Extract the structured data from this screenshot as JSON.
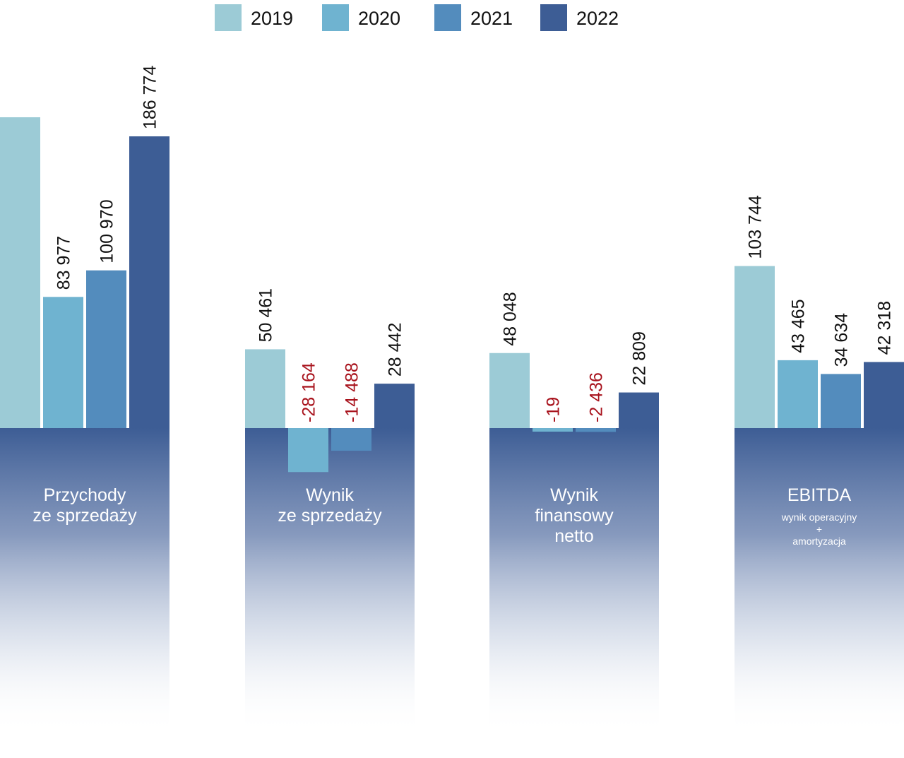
{
  "chart_data": {
    "type": "bar",
    "title": "",
    "xlabel": "",
    "ylabel": "",
    "legend_position": "top-center",
    "grid": false,
    "ylim": [
      -30000,
      215000
    ],
    "categories": [
      {
        "label_lines": [
          "Przychody",
          "ze sprzedaży"
        ],
        "sublabel_lines": []
      },
      {
        "label_lines": [
          "Wynik",
          "ze sprzedaży"
        ],
        "sublabel_lines": []
      },
      {
        "label_lines": [
          "Wynik",
          "finansowy",
          "netto"
        ],
        "sublabel_lines": []
      },
      {
        "label_lines": [
          "EBITDA"
        ],
        "sublabel_lines": [
          "wynik operacyjny",
          "+",
          "amortyzacja"
        ]
      }
    ],
    "series": [
      {
        "name": "2019",
        "color": "#9ccbd6",
        "values": [
          199000,
          50461,
          48048,
          103744
        ],
        "labels": [
          "",
          "50 461",
          "48 048",
          "103 744"
        ]
      },
      {
        "name": "2020",
        "color": "#6fb3d0",
        "values": [
          83977,
          -28164,
          -19,
          43465
        ],
        "labels": [
          "83 977",
          "-28 164",
          "-19",
          "43 465"
        ]
      },
      {
        "name": "2021",
        "color": "#538cbd",
        "values": [
          100970,
          -14488,
          -2436,
          34634
        ],
        "labels": [
          "100 970",
          "-14 488",
          "-2 436",
          "34 634"
        ]
      },
      {
        "name": "2022",
        "color": "#3d5d95",
        "values": [
          186774,
          28442,
          22809,
          42318
        ],
        "labels": [
          "186 774",
          "28 442",
          "22 809",
          "42 318"
        ]
      }
    ],
    "label_colors": {
      "positive": "#111111",
      "negative": "#a8121c"
    },
    "base_panel_color": "#3d5d95"
  }
}
